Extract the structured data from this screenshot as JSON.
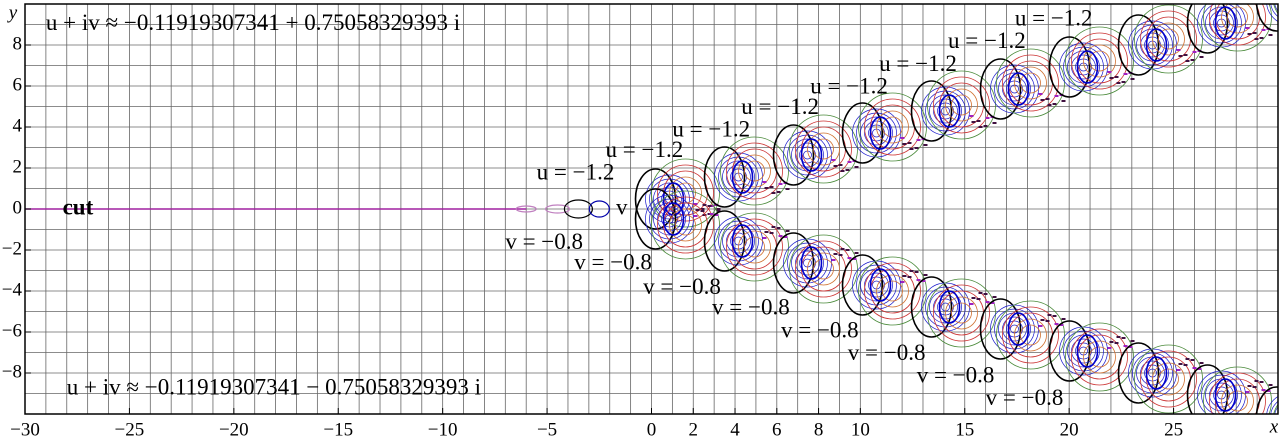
{
  "chart_data": {
    "type": "contour",
    "x_label": "x",
    "y_label": "y",
    "xlim": [
      -30,
      30
    ],
    "ylim": [
      -10,
      10
    ],
    "xticks": [
      {
        "value": -30,
        "label": "−30"
      },
      {
        "value": -25,
        "label": "−25"
      },
      {
        "value": -20,
        "label": "−20"
      },
      {
        "value": -15,
        "label": "−15"
      },
      {
        "value": -10,
        "label": "−10"
      },
      {
        "value": -5,
        "label": "−5"
      },
      0,
      2,
      4,
      6,
      8,
      10,
      15,
      20,
      25
    ],
    "yticks": [
      {
        "value": -8,
        "label": "−8"
      },
      {
        "value": -6,
        "label": "−6"
      },
      {
        "value": -4,
        "label": "−4"
      },
      {
        "value": -2,
        "label": "−2"
      },
      0,
      2,
      4,
      6,
      8
    ],
    "grid": true,
    "grid_step": 1,
    "annotations": [
      {
        "text": "u + iv ≈ −0.11919307341 + 0.75058329393 i",
        "x": -29,
        "y": 9
      },
      {
        "text": "u + iv ≈ −0.11919307341 − 0.75058329393 i",
        "x": -28,
        "y": -8.8
      },
      {
        "text": "cut",
        "x": -28.2,
        "y": 0
      },
      {
        "text": "v",
        "x": -1.7,
        "y": 0
      },
      {
        "text": "u = −1.2",
        "x": -5.5,
        "y": 1.7
      },
      {
        "text": "u = −1.2",
        "x": -2.2,
        "y": 2.8
      },
      {
        "text": "u = −1.2",
        "x": 1,
        "y": 3.8
      },
      {
        "text": "u = −1.2",
        "x": 4.3,
        "y": 4.9
      },
      {
        "text": "u = −1.2",
        "x": 7.6,
        "y": 5.9
      },
      {
        "text": "u = −1.2",
        "x": 10.9,
        "y": 7
      },
      {
        "text": "u = −1.2",
        "x": 14.2,
        "y": 8.1
      },
      {
        "text": "u = −1.2",
        "x": 17.4,
        "y": 9.2
      },
      {
        "text": "v = −0.8",
        "x": -7,
        "y": -1.7
      },
      {
        "text": "v = −0.8",
        "x": -3.7,
        "y": -2.7
      },
      {
        "text": "v = −0.8",
        "x": -0.4,
        "y": -3.9
      },
      {
        "text": "v = −0.8",
        "x": 2.9,
        "y": -4.9
      },
      {
        "text": "v = −0.8",
        "x": 6.2,
        "y": -6
      },
      {
        "text": "v = −0.8",
        "x": 9.4,
        "y": -7.1
      },
      {
        "text": "v = −0.8",
        "x": 12.7,
        "y": -8.2
      },
      {
        "text": "v = −0.8",
        "x": 16,
        "y": -9.3
      }
    ]
  }
}
